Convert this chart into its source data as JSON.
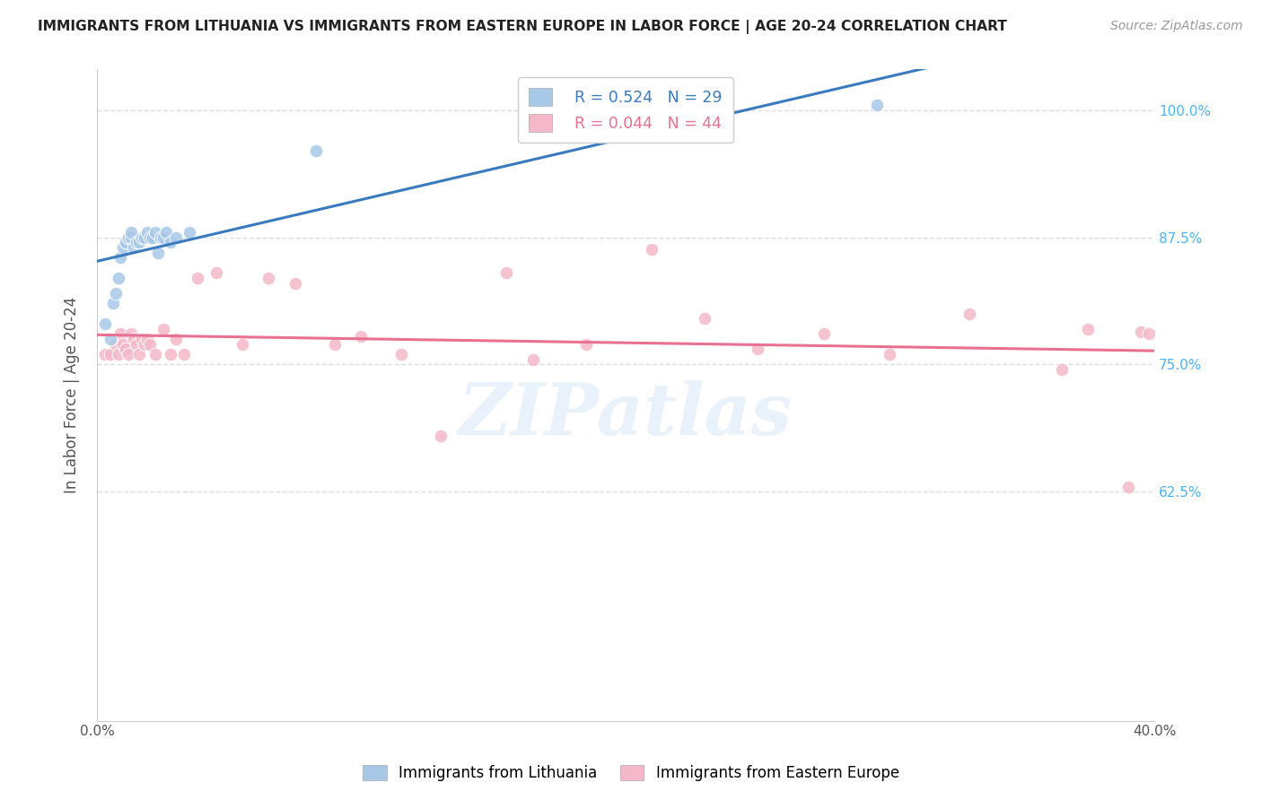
{
  "title": "IMMIGRANTS FROM LITHUANIA VS IMMIGRANTS FROM EASTERN EUROPE IN LABOR FORCE | AGE 20-24 CORRELATION CHART",
  "source": "Source: ZipAtlas.com",
  "ylabel": "In Labor Force | Age 20-24",
  "xlim": [
    0.0,
    0.4
  ],
  "ylim": [
    0.4,
    1.04
  ],
  "xticks": [
    0.0,
    0.05,
    0.1,
    0.15,
    0.2,
    0.25,
    0.3,
    0.35,
    0.4
  ],
  "yticks": [
    0.625,
    0.75,
    0.875,
    1.0
  ],
  "yticklabels": [
    "62.5%",
    "75.0%",
    "87.5%",
    "100.0%"
  ],
  "legend_r1": "R = 0.524",
  "legend_n1": "N = 29",
  "legend_r2": "R = 0.044",
  "legend_n2": "N = 44",
  "blue_color": "#a8c8e8",
  "pink_color": "#f4b8c8",
  "blue_line_color": "#3a7abf",
  "pink_line_color": "#e87090",
  "blue_scatter_x": [
    0.003,
    0.005,
    0.006,
    0.007,
    0.008,
    0.009,
    0.01,
    0.011,
    0.012,
    0.013,
    0.013,
    0.014,
    0.015,
    0.016,
    0.017,
    0.018,
    0.019,
    0.02,
    0.021,
    0.022,
    0.023,
    0.024,
    0.025,
    0.026,
    0.028,
    0.03,
    0.035,
    0.083,
    0.295
  ],
  "blue_scatter_y": [
    0.79,
    0.775,
    0.81,
    0.82,
    0.835,
    0.855,
    0.865,
    0.87,
    0.875,
    0.875,
    0.88,
    0.865,
    0.87,
    0.87,
    0.875,
    0.875,
    0.88,
    0.875,
    0.875,
    0.88,
    0.86,
    0.875,
    0.875,
    0.88,
    0.87,
    0.875,
    0.88,
    0.96,
    1.005
  ],
  "pink_scatter_x": [
    0.003,
    0.005,
    0.007,
    0.008,
    0.009,
    0.01,
    0.011,
    0.012,
    0.013,
    0.014,
    0.015,
    0.016,
    0.017,
    0.018,
    0.019,
    0.02,
    0.022,
    0.025,
    0.028,
    0.03,
    0.033,
    0.038,
    0.045,
    0.055,
    0.065,
    0.075,
    0.09,
    0.1,
    0.115,
    0.13,
    0.155,
    0.165,
    0.185,
    0.21,
    0.23,
    0.25,
    0.275,
    0.3,
    0.33,
    0.365,
    0.375,
    0.39,
    0.395,
    0.398
  ],
  "pink_scatter_y": [
    0.76,
    0.76,
    0.77,
    0.76,
    0.78,
    0.77,
    0.765,
    0.76,
    0.78,
    0.775,
    0.77,
    0.76,
    0.775,
    0.77,
    0.775,
    0.77,
    0.76,
    0.785,
    0.76,
    0.775,
    0.76,
    0.835,
    0.84,
    0.77,
    0.835,
    0.83,
    0.77,
    0.778,
    0.76,
    0.68,
    0.84,
    0.755,
    0.77,
    0.863,
    0.795,
    0.765,
    0.78,
    0.76,
    0.8,
    0.745,
    0.785,
    0.63,
    0.782,
    0.78
  ],
  "watermark": "ZIPatlas",
  "background_color": "#ffffff",
  "grid_color": "#dddddd"
}
